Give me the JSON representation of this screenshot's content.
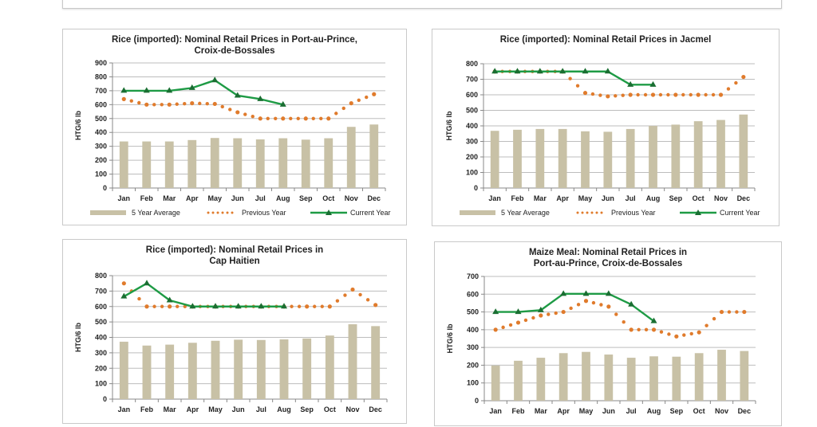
{
  "colors": {
    "bar": "#c8c1a6",
    "previous": "#e07b2c",
    "current": "#1e9b45",
    "marker": "#1a6e32",
    "grid": "#bdbdbd"
  },
  "chart_data": [
    {
      "type": "bar",
      "title": "Rice (imported): Nominal Retail Prices in Port-au-Prince, Croix-de-Bossales",
      "title_lines": [
        "Rice (imported): Nominal Retail Prices in Port-au-Prince,",
        "Croix-de-Bossales"
      ],
      "ylabel": "HTG/6 lb",
      "ylim": [
        0,
        900
      ],
      "yticks": [
        0,
        100,
        200,
        300,
        400,
        500,
        600,
        700,
        800,
        900
      ],
      "categories": [
        "Jan",
        "Feb",
        "Mar",
        "Apr",
        "May",
        "Jun",
        "Jul",
        "Aug",
        "Sep",
        "Oct",
        "Nov",
        "Dec"
      ],
      "series": [
        {
          "name": "5 Year Average",
          "kind": "bar",
          "values": [
            335,
            335,
            335,
            345,
            360,
            358,
            350,
            358,
            348,
            358,
            440,
            457
          ]
        },
        {
          "name": "Previous Year",
          "kind": "dotted-line",
          "values": [
            640,
            600,
            600,
            610,
            605,
            545,
            500,
            500,
            500,
            500,
            610,
            675
          ]
        },
        {
          "name": "Current Year",
          "kind": "line-triangle",
          "values": [
            700,
            700,
            700,
            720,
            775,
            665,
            640,
            600,
            null,
            null,
            null,
            null
          ]
        }
      ],
      "legend": [
        "5 Year Average",
        "Previous Year",
        "Current Year"
      ],
      "legend_position": "bottom",
      "grid": true
    },
    {
      "type": "bar",
      "title": "Rice (imported): Nominal Retail Prices in Jacmel",
      "title_lines": [
        "Rice (imported): Nominal Retail Prices in Jacmel"
      ],
      "ylabel": "HTG/6 lb",
      "ylim": [
        0,
        800
      ],
      "yticks": [
        0,
        100,
        200,
        300,
        400,
        500,
        600,
        700,
        800
      ],
      "categories": [
        "Jan",
        "Feb",
        "Mar",
        "Apr",
        "May",
        "Jun",
        "Jul",
        "Aug",
        "Sep",
        "Oct",
        "Nov",
        "Dec"
      ],
      "series": [
        {
          "name": "5 Year Average",
          "kind": "bar",
          "values": [
            368,
            375,
            380,
            380,
            365,
            362,
            380,
            400,
            408,
            430,
            438,
            473
          ]
        },
        {
          "name": "Previous Year",
          "kind": "dotted-line",
          "values": [
            750,
            750,
            750,
            750,
            612,
            590,
            600,
            600,
            600,
            600,
            600,
            715
          ]
        },
        {
          "name": "Current Year",
          "kind": "line-triangle",
          "values": [
            750,
            750,
            750,
            750,
            750,
            750,
            665,
            665,
            null,
            null,
            null,
            null
          ]
        }
      ],
      "legend": [
        "5 Year Average",
        "Previous Year",
        "Current Year"
      ],
      "legend_position": "bottom",
      "grid": true
    },
    {
      "type": "bar",
      "title": "Rice (imported): Nominal Retail Prices in Cap Haitien",
      "title_lines": [
        "Rice (imported): Nominal Retail Prices in",
        "Cap Haitien"
      ],
      "ylabel": "HTG/6 lb",
      "ylim": [
        0,
        800
      ],
      "yticks": [
        0,
        100,
        200,
        300,
        400,
        500,
        600,
        700,
        800
      ],
      "categories": [
        "Jan",
        "Feb",
        "Mar",
        "Apr",
        "May",
        "Jun",
        "Jul",
        "Aug",
        "Sep",
        "Oct",
        "Nov",
        "Dec"
      ],
      "series": [
        {
          "name": "5 Year Average",
          "kind": "bar",
          "values": [
            372,
            347,
            353,
            365,
            378,
            385,
            383,
            387,
            393,
            412,
            485,
            473
          ]
        },
        {
          "name": "Previous Year",
          "kind": "dotted-line",
          "values": [
            750,
            600,
            600,
            600,
            600,
            600,
            600,
            600,
            600,
            600,
            710,
            610
          ]
        },
        {
          "name": "Current Year",
          "kind": "line-triangle",
          "values": [
            665,
            750,
            640,
            600,
            600,
            600,
            600,
            600,
            null,
            null,
            null,
            null
          ]
        }
      ],
      "grid": true
    },
    {
      "type": "bar",
      "title": "Maize Meal: Nominal Retail Prices in Port-au-Prince, Croix-de-Bossales",
      "title_lines": [
        "Maize Meal: Nominal Retail Prices in",
        "Port-au-Prince, Croix-de-Bossales"
      ],
      "ylabel": "HTG/6 lb",
      "ylim": [
        0,
        700
      ],
      "yticks": [
        0,
        100,
        200,
        300,
        400,
        500,
        600,
        700
      ],
      "categories": [
        "Jan",
        "Feb",
        "Mar",
        "Apr",
        "May",
        "Jun",
        "Jul",
        "Aug",
        "Sep",
        "Oct",
        "Nov",
        "Dec"
      ],
      "series": [
        {
          "name": "5 Year Average",
          "kind": "bar",
          "values": [
            198,
            225,
            242,
            268,
            275,
            260,
            242,
            250,
            248,
            268,
            287,
            280
          ]
        },
        {
          "name": "Previous Year",
          "kind": "dotted-line",
          "values": [
            400,
            440,
            480,
            500,
            562,
            530,
            400,
            400,
            362,
            385,
            500,
            500
          ]
        },
        {
          "name": "Current Year",
          "kind": "line-triangle",
          "values": [
            500,
            500,
            510,
            602,
            602,
            602,
            542,
            448,
            null,
            null,
            null,
            null
          ]
        }
      ],
      "grid": true
    }
  ]
}
